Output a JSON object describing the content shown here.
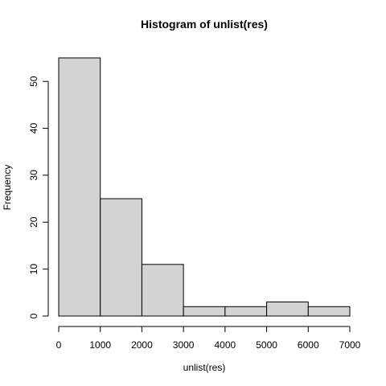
{
  "chart_data": {
    "type": "bar",
    "title": "Histogram of unlist(res)",
    "xlabel": "unlist(res)",
    "ylabel": "Frequency",
    "bins": [
      {
        "x0": 0,
        "x1": 1000,
        "count": 55
      },
      {
        "x0": 1000,
        "x1": 2000,
        "count": 25
      },
      {
        "x0": 2000,
        "x1": 3000,
        "count": 11
      },
      {
        "x0": 3000,
        "x1": 4000,
        "count": 2
      },
      {
        "x0": 4000,
        "x1": 5000,
        "count": 2
      },
      {
        "x0": 5000,
        "x1": 6000,
        "count": 3
      },
      {
        "x0": 6000,
        "x1": 7000,
        "count": 2
      }
    ],
    "xlim": [
      0,
      7000
    ],
    "ylim": [
      0,
      55
    ],
    "x_ticks": [
      "0",
      "1000",
      "2000",
      "3000",
      "4000",
      "5000",
      "6000",
      "7000"
    ],
    "y_ticks": [
      "0",
      "10",
      "20",
      "30",
      "40",
      "50"
    ],
    "grid": false,
    "bar_fill": "#d3d3d3",
    "bar_stroke": "#000000"
  }
}
